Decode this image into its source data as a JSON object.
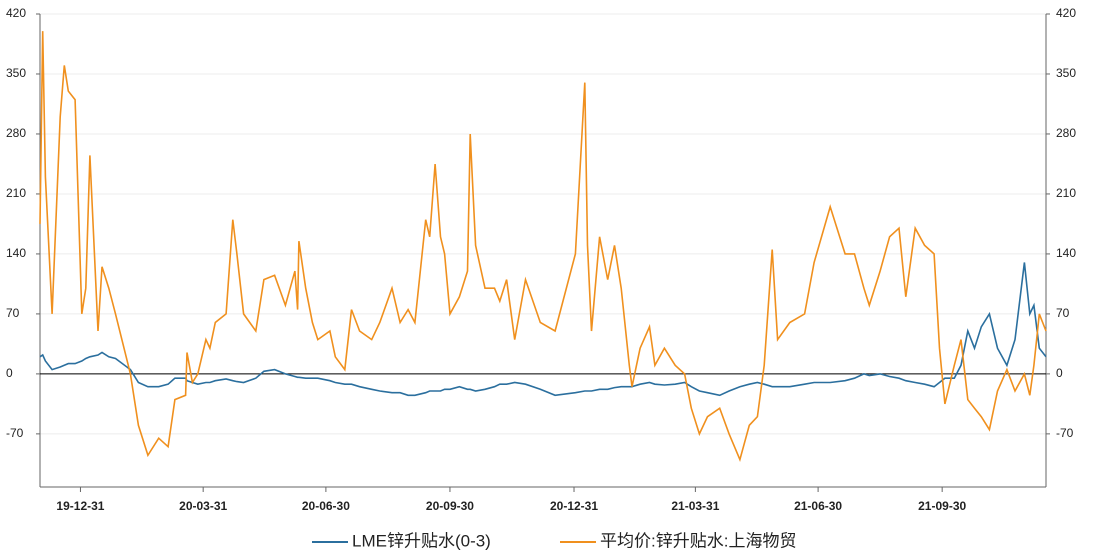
{
  "chart_data": {
    "type": "line",
    "x": [
      "19-12-01",
      "19-12-03",
      "19-12-05",
      "19-12-10",
      "19-12-16",
      "19-12-19",
      "19-12-22",
      "19-12-27",
      "20-01-01",
      "20-01-04",
      "20-01-07",
      "20-01-13",
      "20-01-16",
      "20-01-21",
      "20-01-26",
      "20-02-06",
      "20-02-12",
      "20-02-19",
      "20-02-27",
      "20-03-05",
      "20-03-10",
      "20-03-18",
      "20-03-19",
      "20-03-23",
      "20-03-27",
      "20-04-02",
      "20-04-05",
      "20-04-09",
      "20-04-17",
      "20-04-22",
      "20-04-25",
      "20-04-30",
      "20-05-09",
      "20-05-15",
      "20-05-23",
      "20-05-31",
      "20-06-07",
      "20-06-09",
      "20-06-10",
      "20-06-15",
      "20-06-20",
      "20-06-24",
      "20-07-03",
      "20-07-07",
      "20-07-14",
      "20-07-19",
      "20-07-25",
      "20-08-03",
      "20-08-09",
      "20-08-18",
      "20-08-24",
      "20-08-30",
      "20-09-04",
      "20-09-12",
      "20-09-15",
      "20-09-19",
      "20-09-23",
      "20-09-26",
      "20-09-30",
      "20-10-07",
      "20-10-13",
      "20-10-15",
      "20-10-19",
      "20-10-26",
      "20-11-02",
      "20-11-06",
      "20-11-11",
      "20-11-17",
      "20-11-25",
      "20-12-06",
      "20-12-17",
      "21-01-01",
      "21-01-08",
      "21-01-10",
      "21-01-13",
      "21-01-19",
      "21-01-25",
      "21-01-30",
      "21-02-04",
      "21-02-10",
      "21-02-12",
      "21-02-18",
      "21-02-25",
      "21-03-01",
      "21-03-08",
      "21-03-16",
      "21-03-23",
      "21-03-28",
      "21-04-03",
      "21-04-09",
      "21-04-18",
      "21-04-25",
      "21-05-03",
      "21-05-10",
      "21-05-16",
      "21-05-21",
      "21-05-27",
      "21-05-31",
      "21-06-09",
      "21-06-20",
      "21-06-27",
      "21-07-09",
      "21-07-20",
      "21-07-27",
      "21-08-03",
      "21-08-07",
      "21-08-15",
      "21-08-22",
      "21-08-29",
      "21-09-03",
      "21-09-10",
      "21-09-17",
      "21-09-24",
      "21-09-28",
      "21-10-02",
      "21-10-09",
      "21-10-14",
      "21-10-19",
      "21-10-24",
      "21-10-29",
      "21-11-04",
      "21-11-10",
      "21-11-17",
      "21-11-23",
      "21-11-30",
      "21-12-04",
      "21-12-07",
      "21-12-11",
      "21-12-16"
    ],
    "series": [
      {
        "name": "LME锌升贴水(0-3)",
        "color": "#2b6f9e",
        "values": [
          20,
          22,
          15,
          5,
          8,
          10,
          12,
          12,
          15,
          18,
          20,
          22,
          25,
          20,
          18,
          5,
          -10,
          -15,
          -15,
          -12,
          -5,
          -5,
          -8,
          -10,
          -12,
          -10,
          -10,
          -8,
          -6,
          -8,
          -9,
          -10,
          -5,
          3,
          5,
          0,
          -3,
          -4,
          -4,
          -5,
          -5,
          -5,
          -8,
          -10,
          -12,
          -12,
          -15,
          -18,
          -20,
          -22,
          -22,
          -25,
          -25,
          -22,
          -20,
          -20,
          -20,
          -18,
          -18,
          -15,
          -18,
          -18,
          -20,
          -18,
          -15,
          -12,
          -12,
          -10,
          -12,
          -18,
          -25,
          -22,
          -20,
          -20,
          -20,
          -18,
          -18,
          -16,
          -15,
          -15,
          -15,
          -12,
          -10,
          -12,
          -13,
          -12,
          -10,
          -15,
          -20,
          -22,
          -25,
          -20,
          -15,
          -12,
          -10,
          -12,
          -15,
          -15,
          -15,
          -12,
          -10,
          -10,
          -8,
          -5,
          0,
          -2,
          0,
          -3,
          -5,
          -8,
          -10,
          -12,
          -15,
          -10,
          -5,
          -5,
          10,
          50,
          30,
          55,
          70,
          30,
          10,
          40,
          130,
          70,
          80,
          30,
          20
        ]
      },
      {
        "name": "平均价:锌升贴水:上海物贸",
        "color": "#f0901e",
        "axis": "y2",
        "values": [
          175,
          400,
          230,
          70,
          300,
          360,
          330,
          320,
          70,
          100,
          255,
          50,
          125,
          100,
          70,
          0,
          -60,
          -95,
          -75,
          -85,
          -30,
          -25,
          25,
          -10,
          0,
          40,
          30,
          60,
          70,
          180,
          140,
          70,
          50,
          110,
          115,
          80,
          120,
          75,
          155,
          100,
          60,
          40,
          50,
          20,
          5,
          75,
          50,
          40,
          60,
          100,
          60,
          75,
          60,
          180,
          160,
          245,
          160,
          140,
          70,
          90,
          120,
          280,
          150,
          100,
          100,
          85,
          110,
          40,
          110,
          60,
          50,
          140,
          340,
          150,
          50,
          160,
          110,
          150,
          100,
          10,
          -15,
          30,
          55,
          10,
          30,
          10,
          0,
          -40,
          -70,
          -50,
          -40,
          -70,
          -100,
          -60,
          -50,
          10,
          145,
          40,
          60,
          70,
          130,
          195,
          140,
          140,
          100,
          80,
          120,
          160,
          170,
          90,
          170,
          150,
          140,
          30,
          -35,
          10,
          40,
          -30,
          -40,
          -50,
          -65,
          -20,
          5,
          -20,
          0,
          -25,
          10,
          70,
          50
        ]
      }
    ],
    "xlim": [
      "19-12-01",
      "21-12-16"
    ],
    "xticks": [
      "19-12-31",
      "20-03-31",
      "20-06-30",
      "20-09-30",
      "20-12-31",
      "21-03-31",
      "21-06-30",
      "21-09-30"
    ],
    "ylim": [
      -132,
      420
    ],
    "yticks": [
      -70,
      0,
      70,
      140,
      210,
      280,
      350,
      420
    ],
    "y2lim": [
      -132,
      420
    ],
    "y2ticks": [
      -70,
      0,
      70,
      140,
      210,
      280,
      350,
      420
    ],
    "grid": true,
    "legend": "bottom"
  }
}
